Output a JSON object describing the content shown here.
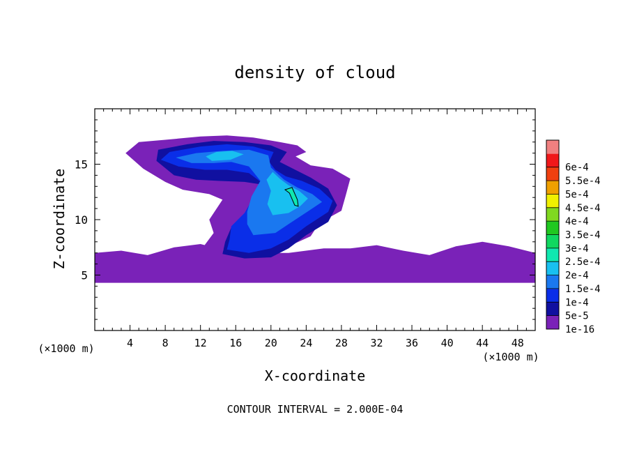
{
  "chart_data": {
    "type": "heatmap",
    "title": "density of cloud",
    "xlabel": "X-coordinate",
    "ylabel": "Z-coordinate",
    "x_unit_label": "(×1000 m)",
    "z_unit_label": "(×1000 m)",
    "xlim": [
      0,
      50
    ],
    "ylim": [
      0,
      20
    ],
    "x_ticks": [
      4,
      8,
      12,
      16,
      20,
      24,
      28,
      32,
      36,
      40,
      44,
      48
    ],
    "y_ticks": [
      5,
      10,
      15
    ],
    "footer": "CONTOUR INTERVAL = 2.000E-04",
    "colorbar": {
      "levels": [
        "1e-16",
        "5e-5",
        "1e-4",
        "1.5e-4",
        "2e-4",
        "2.5e-4",
        "3e-4",
        "3.5e-4",
        "4e-4",
        "4.5e-4",
        "5e-4",
        "5.5e-4",
        "6e-4"
      ],
      "colors": [
        "#7a22b8",
        "#1010a0",
        "#0a2ee8",
        "#1a78f0",
        "#18c0f0",
        "#10e8b0",
        "#10d860",
        "#20c820",
        "#80d820",
        "#f0f000",
        "#f0a000",
        "#f04010",
        "#f0181a",
        "#f08080"
      ]
    },
    "regions": [
      {
        "name": "lower cloud layer",
        "level": "1e-16",
        "points": [
          [
            0,
            4.3
          ],
          [
            50,
            4.3
          ],
          [
            50,
            7
          ],
          [
            47,
            7.6
          ],
          [
            44,
            8
          ],
          [
            41,
            7.6
          ],
          [
            38,
            6.8
          ],
          [
            35,
            7.2
          ],
          [
            32,
            7.7
          ],
          [
            29,
            7.4
          ],
          [
            26,
            7.4
          ],
          [
            22,
            7
          ],
          [
            18,
            7
          ],
          [
            15,
            7.2
          ],
          [
            12,
            7.8
          ],
          [
            9,
            7.5
          ],
          [
            6,
            6.8
          ],
          [
            3,
            7.2
          ],
          [
            0,
            7
          ]
        ]
      },
      {
        "name": "main cloud envelope",
        "level": "1e-16",
        "points": [
          [
            12,
            7.2
          ],
          [
            13.5,
            8.8
          ],
          [
            13,
            10
          ],
          [
            14.5,
            11.8
          ],
          [
            13,
            12.3
          ],
          [
            10,
            12.7
          ],
          [
            8,
            13.4
          ],
          [
            5.5,
            14.6
          ],
          [
            3.5,
            16
          ],
          [
            5,
            17
          ],
          [
            8,
            17.2
          ],
          [
            12,
            17.5
          ],
          [
            15,
            17.6
          ],
          [
            18,
            17.4
          ],
          [
            21,
            17
          ],
          [
            23,
            16.7
          ],
          [
            24,
            16.1
          ],
          [
            22.8,
            15.7
          ],
          [
            24.5,
            14.9
          ],
          [
            27,
            14.6
          ],
          [
            29,
            13.7
          ],
          [
            28.5,
            12.2
          ],
          [
            28,
            10.8
          ],
          [
            25.5,
            9.7
          ],
          [
            24.5,
            8.5
          ],
          [
            22,
            7.6
          ],
          [
            18,
            7.2
          ],
          [
            15,
            7.3
          ]
        ]
      },
      {
        "name": "core 5e-5",
        "level": "5e-5",
        "points": [
          [
            14.5,
            6.9
          ],
          [
            17,
            6.5
          ],
          [
            20,
            6.6
          ],
          [
            22,
            7.4
          ],
          [
            24,
            8.6
          ],
          [
            26.5,
            9.8
          ],
          [
            27.5,
            11.3
          ],
          [
            26.5,
            12.8
          ],
          [
            24.5,
            13.8
          ],
          [
            22.5,
            14.6
          ],
          [
            21,
            15.2
          ],
          [
            21.8,
            16.1
          ],
          [
            20,
            16.7
          ],
          [
            17,
            17
          ],
          [
            13.5,
            17.1
          ],
          [
            10.5,
            16.8
          ],
          [
            7.2,
            16.3
          ],
          [
            7,
            15.3
          ],
          [
            9,
            14
          ],
          [
            11.5,
            13.6
          ],
          [
            14,
            13.5
          ],
          [
            17,
            13.4
          ],
          [
            19.5,
            13.1
          ],
          [
            18.5,
            12
          ],
          [
            17.5,
            10.6
          ],
          [
            15.5,
            9.3
          ],
          [
            14.8,
            8
          ]
        ]
      },
      {
        "name": "core 1e-4",
        "level": "1e-4",
        "points": [
          [
            15,
            7.3
          ],
          [
            17.5,
            7
          ],
          [
            20,
            7.4
          ],
          [
            22,
            8.2
          ],
          [
            24,
            9.4
          ],
          [
            26.5,
            10.7
          ],
          [
            27,
            11.7
          ],
          [
            25.5,
            12.8
          ],
          [
            23.5,
            13.5
          ],
          [
            21.7,
            13.9
          ],
          [
            20.5,
            14.5
          ],
          [
            19.8,
            15.2
          ],
          [
            20.3,
            16.1
          ],
          [
            18,
            16.6
          ],
          [
            15,
            16.8
          ],
          [
            12,
            16.6
          ],
          [
            8.5,
            16.1
          ],
          [
            7.5,
            15.4
          ],
          [
            9.5,
            14.8
          ],
          [
            12.5,
            14.5
          ],
          [
            15,
            14.5
          ],
          [
            17.5,
            14.2
          ],
          [
            19,
            13.3
          ],
          [
            18,
            12
          ],
          [
            17,
            10.6
          ],
          [
            15.5,
            9.4
          ],
          [
            15.3,
            8.2
          ]
        ]
      },
      {
        "name": "core 1.5e-4",
        "level": "1.5e-4",
        "points": [
          [
            18,
            8.6
          ],
          [
            20.5,
            8.8
          ],
          [
            22.2,
            9.7
          ],
          [
            24.3,
            10.8
          ],
          [
            25.8,
            11.6
          ],
          [
            24.7,
            12.3
          ],
          [
            23,
            12.9
          ],
          [
            21.5,
            13.6
          ],
          [
            20,
            14.7
          ],
          [
            19.7,
            15.8
          ],
          [
            17.5,
            16.3
          ],
          [
            14.5,
            16.2
          ],
          [
            11.5,
            16
          ],
          [
            9.2,
            15.6
          ],
          [
            11,
            15.1
          ],
          [
            13.5,
            15.1
          ],
          [
            15.5,
            15.2
          ],
          [
            17.5,
            14.8
          ],
          [
            18.8,
            13.5
          ],
          [
            17.8,
            12.1
          ],
          [
            17.3,
            10.7
          ],
          [
            17.3,
            9.6
          ]
        ]
      },
      {
        "name": "core 2e-4",
        "level": "2e-4",
        "points": [
          [
            20.2,
            10.4
          ],
          [
            22,
            10.6
          ],
          [
            23.3,
            11.2
          ],
          [
            24.2,
            11.9
          ],
          [
            23.2,
            12.6
          ],
          [
            22,
            13.1
          ],
          [
            21,
            13.7
          ],
          [
            20.2,
            14.3
          ],
          [
            19.5,
            13.6
          ],
          [
            20,
            12.6
          ],
          [
            19.6,
            11.4
          ]
        ]
      },
      {
        "name": "core 2e-4 upper",
        "level": "2e-4",
        "points": [
          [
            13.3,
            15.3
          ],
          [
            15.4,
            15.4
          ],
          [
            16.9,
            15.9
          ],
          [
            15.6,
            16.2
          ],
          [
            13.8,
            16.1
          ],
          [
            12.6,
            15.7
          ]
        ]
      },
      {
        "name": "core 2.5e-4",
        "level": "2.5e-4",
        "points": [
          [
            21.6,
            12.7
          ],
          [
            22.4,
            12.9
          ],
          [
            23,
            11.8
          ],
          [
            23.1,
            11.2
          ],
          [
            22.7,
            11.3
          ],
          [
            22.1,
            12.4
          ]
        ]
      }
    ]
  }
}
